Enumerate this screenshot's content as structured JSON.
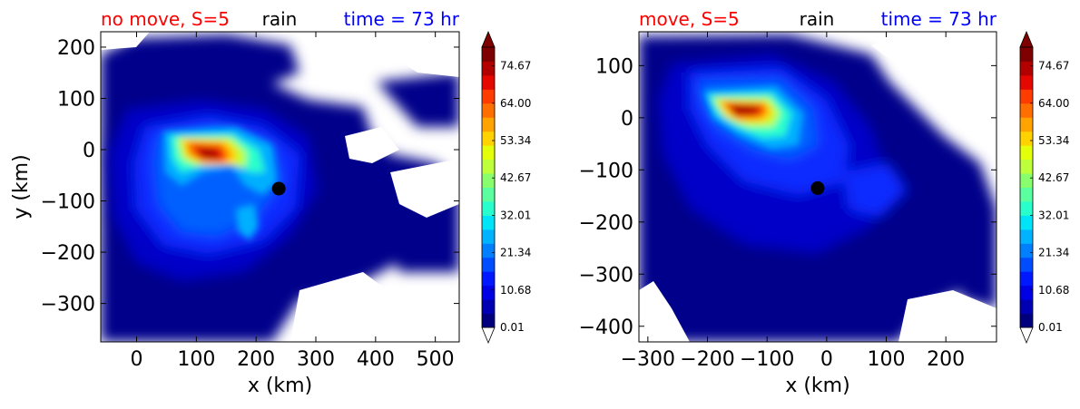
{
  "colorbar": {
    "levels_min": 0.01,
    "levels_max": 80.0,
    "tick_labels": [
      "0.01",
      "10.68",
      "21.34",
      "32.01",
      "42.67",
      "53.34",
      "64.00",
      "74.67"
    ],
    "colors": [
      "#00007f",
      "#0000b2",
      "#0000e5",
      "#0018ff",
      "#004cff",
      "#0080ff",
      "#00b2ff",
      "#00e4f7",
      "#29ffcd",
      "#5affa0",
      "#8aff6d",
      "#bdff3a",
      "#e4ff0a",
      "#ffd200",
      "#ffa300",
      "#ff6f00",
      "#ff3c00",
      "#e50800",
      "#b20000",
      "#7f0000"
    ],
    "extend": "both"
  },
  "chart_data": [
    {
      "type": "contourf",
      "title_left": "no move, S=5",
      "title_center": "rain",
      "title_right": "time = 73 hr",
      "title_left_color": "#ff0000",
      "title_center_color": "#000000",
      "title_right_color": "#0000ff",
      "xlabel": "x (km)",
      "ylabel": "y (km)",
      "xlim": [
        -60,
        540
      ],
      "ylim": [
        -375,
        230
      ],
      "xticks": [
        0,
        100,
        200,
        300,
        400,
        500
      ],
      "yticks": [
        200,
        100,
        0,
        -100,
        -200,
        -300
      ],
      "xtick_labels": [
        "0",
        "100",
        "200",
        "300",
        "400",
        "500"
      ],
      "ytick_labels": [
        "200",
        "100",
        "0",
        "−100",
        "−200",
        "−300"
      ],
      "center_marker": {
        "x": 238,
        "y": -76,
        "color": "#000000"
      },
      "rain_max_location": {
        "x": 125,
        "y": -5
      }
    },
    {
      "type": "contourf",
      "title_left": "move, S=5",
      "title_center": "rain",
      "title_right": "time = 73 hr",
      "title_left_color": "#ff0000",
      "title_center_color": "#000000",
      "title_right_color": "#0000ff",
      "xlabel": "x (km)",
      "ylabel": "",
      "xlim": [
        -315,
        285
      ],
      "ylim": [
        -430,
        165
      ],
      "xticks": [
        -300,
        -200,
        -100,
        0,
        100,
        200
      ],
      "yticks": [
        100,
        0,
        -100,
        -200,
        -300,
        -400
      ],
      "xtick_labels": [
        "−300",
        "−200",
        "−100",
        "0",
        "100",
        "200"
      ],
      "ytick_labels": [
        "100",
        "0",
        "−100",
        "−200",
        "−300",
        "−400"
      ],
      "center_marker": {
        "x": -15,
        "y": -135,
        "color": "#000000"
      },
      "rain_max_location": {
        "x": -130,
        "y": 5
      }
    }
  ]
}
